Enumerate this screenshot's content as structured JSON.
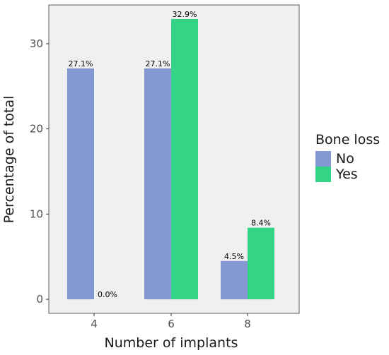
{
  "chart_data": {
    "type": "bar",
    "categories": [
      "4",
      "6",
      "8"
    ],
    "series": [
      {
        "name": "No",
        "values": [
          27.1,
          27.1,
          4.5
        ],
        "labels": [
          "27.1%",
          "27.1%",
          "4.5%"
        ],
        "color": "#8498d2"
      },
      {
        "name": "Yes",
        "values": [
          0.0,
          32.9,
          8.4
        ],
        "labels": [
          "0.0%",
          "32.9%",
          "8.4%"
        ],
        "color": "#33d486"
      }
    ],
    "title": "",
    "xlabel": "Number of implants",
    "ylabel": "Percentage of total",
    "ylim": [
      -1.65,
      34.55
    ],
    "yticks": [
      0,
      10,
      20,
      30
    ],
    "legend": {
      "title": "Bone loss",
      "position": "right"
    },
    "panel_background": "#f0f0f0",
    "grid": false
  }
}
